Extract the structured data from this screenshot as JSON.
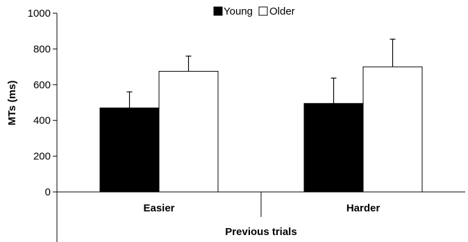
{
  "chart_data": {
    "type": "bar",
    "categories": [
      "Easier",
      "Harder"
    ],
    "series": [
      {
        "name": "Young",
        "values": [
          470,
          495
        ],
        "errors": [
          90,
          142
        ],
        "color": "#000000"
      },
      {
        "name": "Older",
        "values": [
          675,
          700
        ],
        "errors": [
          85,
          155
        ],
        "color": "#ffffff"
      }
    ],
    "ylabel": "MTs (ms)",
    "xlabel": "Previous trials",
    "ylim": [
      0,
      1000
    ],
    "yticks": [
      0,
      200,
      400,
      600,
      800,
      1000
    ],
    "grid": false,
    "legend_position": "top"
  }
}
